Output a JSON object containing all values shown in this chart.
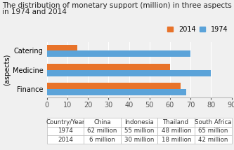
{
  "title_line1": "The distribution of monetary support (million) in three aspects",
  "title_line2": "in 1974 and 2014",
  "ylabel": "(aspects)",
  "categories": [
    "Finance",
    "Medicine",
    "Catering"
  ],
  "values_2014": [
    65,
    60,
    15
  ],
  "values_1974": [
    68,
    80,
    70
  ],
  "color_2014": "#E8732A",
  "color_1974": "#5BA3D9",
  "xlim": [
    0,
    90
  ],
  "xticks": [
    0,
    10,
    20,
    30,
    40,
    50,
    60,
    70,
    80,
    90
  ],
  "legend_labels": [
    "2014",
    "1974"
  ],
  "table_headers": [
    "Country/Year",
    "China",
    "Indonesia",
    "Thailand",
    "South Africa"
  ],
  "table_rows": [
    [
      "1974",
      "62 million",
      "55 million",
      "48 million",
      "65 million"
    ],
    [
      "2014",
      "6 million",
      "30 million",
      "18 million",
      "42 million"
    ]
  ],
  "bg_color": "#F0F0F0",
  "chart_bg": "#F0F0F0",
  "title_fontsize": 7.5,
  "axis_fontsize": 7,
  "table_fontsize": 6.2
}
